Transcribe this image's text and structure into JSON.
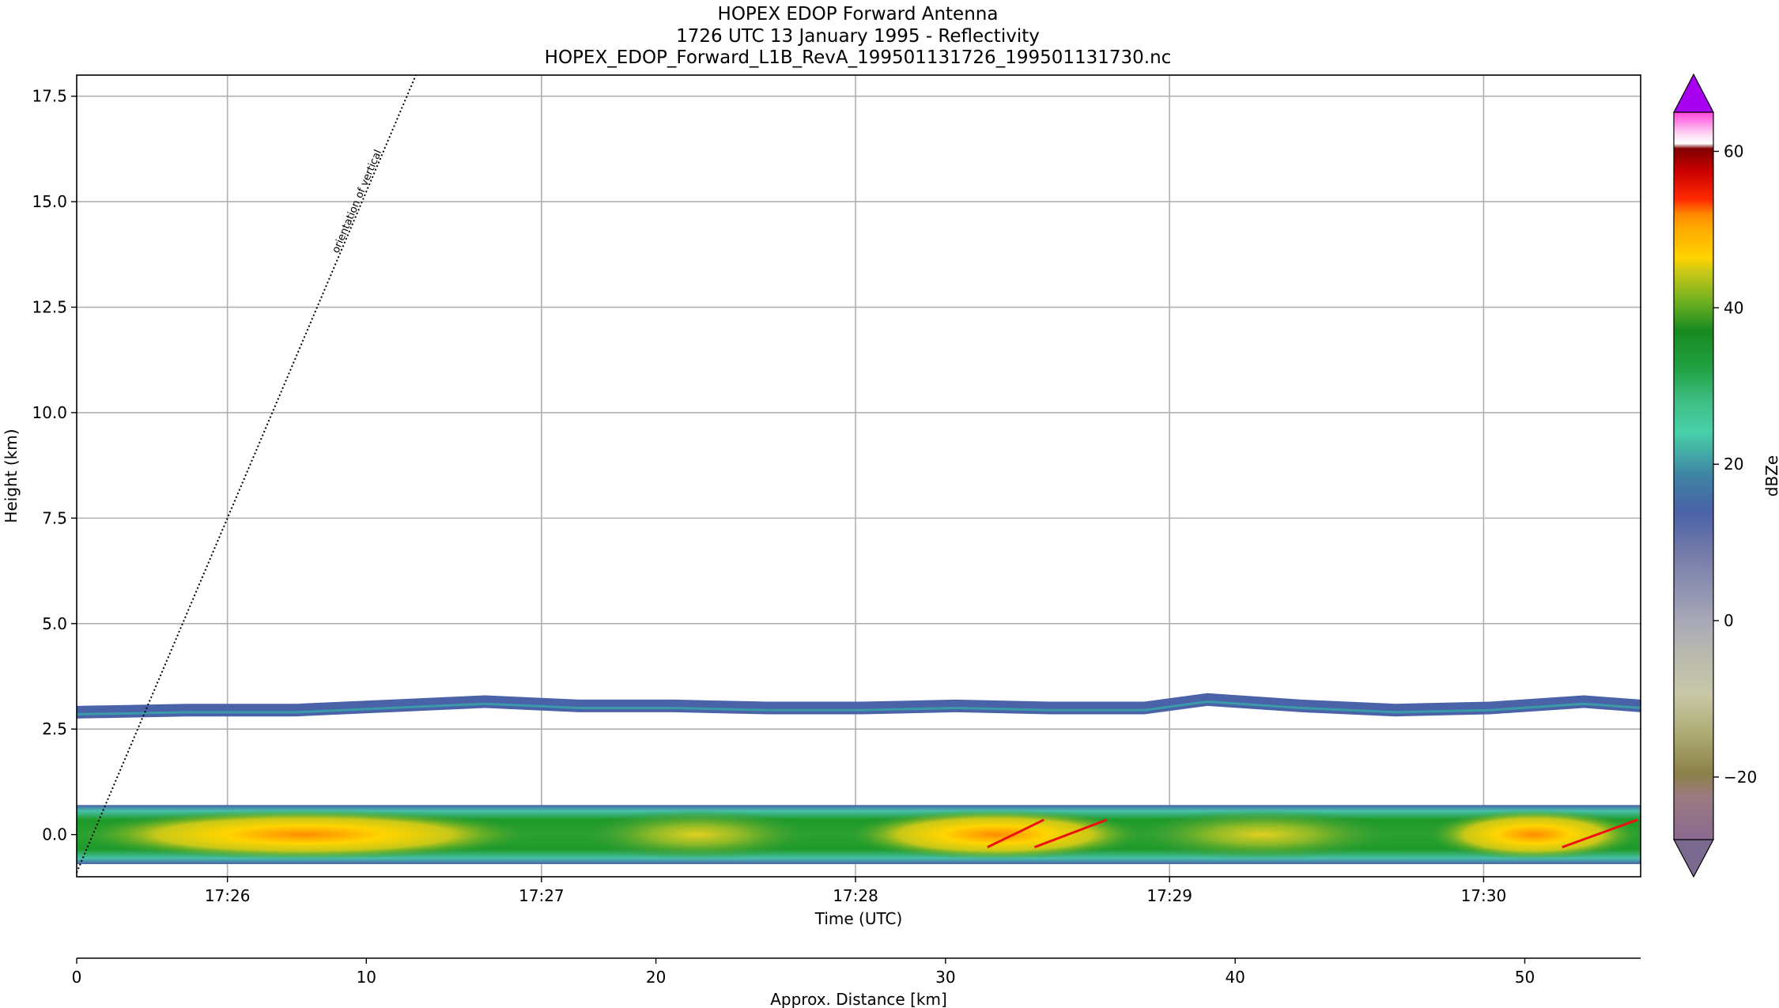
{
  "title": {
    "line1": "HOPEX EDOP Forward Antenna",
    "line2": "1726 UTC 13 January 1995 - Reflectivity",
    "line3": "HOPEX_EDOP_Forward_L1B_RevA_199501131726_199501131730.nc"
  },
  "chart_data": {
    "type": "heatmap",
    "title": "HOPEX EDOP Forward Antenna",
    "ylabel": "Height (km)",
    "xlabel": "Time (UTC)",
    "x2label": "Approx. Distance [km]",
    "colorbar_label": "dBZe",
    "ylim": [
      -1.0,
      18.0
    ],
    "y_ticks": [
      0.0,
      2.5,
      5.0,
      7.5,
      10.0,
      12.5,
      15.0,
      17.5
    ],
    "y_tick_labels": [
      "0.0",
      "2.5",
      "5.0",
      "7.5",
      "10.0",
      "12.5",
      "15.0",
      "17.5"
    ],
    "x_time_range_min": [
      0.0,
      4.98
    ],
    "x_ticks_min": [
      0.48,
      1.48,
      2.48,
      3.48,
      4.48
    ],
    "x_tick_labels": [
      "17:26",
      "17:27",
      "17:28",
      "17:29",
      "17:30"
    ],
    "x2_range_km": [
      0,
      54
    ],
    "x2_ticks": [
      0,
      10,
      20,
      30,
      40,
      50
    ],
    "x2_tick_labels": [
      "0",
      "10",
      "20",
      "30",
      "40",
      "50"
    ],
    "colorbar_range": [
      -28,
      65
    ],
    "colorbar_ticks": [
      -20,
      0,
      20,
      40,
      60
    ],
    "colorbar_tick_labels": [
      "−20",
      "0",
      "20",
      "40",
      "60"
    ],
    "colorbar_extend": "both",
    "grid": true,
    "annotation": "orientation of vertical",
    "annotation_line": {
      "start": [
        0.0,
        -0.9
      ],
      "end": [
        1.08,
        18.0
      ]
    },
    "upper_layer": {
      "x_min": [
        0.0,
        0.35,
        0.7,
        1.0,
        1.3,
        1.6,
        1.9,
        2.2,
        2.5,
        2.8,
        3.1,
        3.4,
        3.6,
        3.9,
        4.2,
        4.5,
        4.8,
        4.98
      ],
      "center_km": [
        2.9,
        2.95,
        2.95,
        3.05,
        3.15,
        3.05,
        3.05,
        3.0,
        3.0,
        3.05,
        3.0,
        3.0,
        3.2,
        3.05,
        2.95,
        3.0,
        3.15,
        3.05
      ],
      "thickness_km": 0.3,
      "dbze": 10
    },
    "lower_band": {
      "bottom_km": -0.7,
      "top_km": 0.7,
      "segments": [
        {
          "x_min": [
            0.0,
            1.45
          ],
          "peak_dbze": 42
        },
        {
          "x_min": [
            1.6,
            2.35
          ],
          "peak_dbze": 34
        },
        {
          "x_min": [
            2.45,
            3.4
          ],
          "peak_dbze": 46
        },
        {
          "x_min": [
            3.35,
            4.2
          ],
          "peak_dbze": 34
        },
        {
          "x_min": [
            4.3,
            4.98
          ],
          "peak_dbze": 42
        }
      ],
      "streaks": [
        {
          "x_min": [
            2.9,
            3.08
          ],
          "dbze": 55
        },
        {
          "x_min": [
            3.05,
            3.28
          ],
          "dbze": 55
        },
        {
          "x_min": [
            4.73,
            4.97
          ],
          "dbze": 55
        }
      ]
    }
  },
  "colors": {
    "gridline": "#b0b0b0",
    "layer_blue": "#4a62a8"
  }
}
